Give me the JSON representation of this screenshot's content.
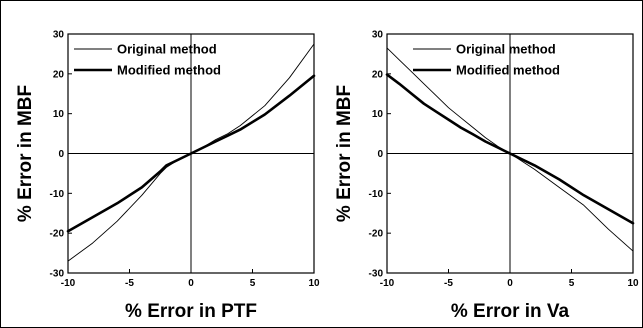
{
  "chart_data": [
    {
      "type": "line",
      "xlabel": "% Error in PTF",
      "ylabel": "% Error in MBF",
      "xlim": [
        -10,
        10
      ],
      "ylim": [
        -30,
        30
      ],
      "xticks": [
        "-10",
        "-5",
        "0",
        "5",
        "10"
      ],
      "yticks": [
        "30",
        "20",
        "10",
        "0",
        "-10",
        "-20",
        "-30"
      ],
      "legend_position": "top-left",
      "series": [
        {
          "name": "Original method",
          "x": [
            -10,
            -8,
            -6,
            -4,
            -2.5,
            -2,
            -1,
            0,
            1,
            2,
            3,
            4,
            6,
            8,
            10
          ],
          "y": [
            -27,
            -22.5,
            -17,
            -10.5,
            -5,
            -3.5,
            -1.5,
            0,
            1.6,
            3.5,
            5,
            7,
            12,
            19,
            27.5
          ]
        },
        {
          "name": "Modified method",
          "x": [
            -10,
            -8,
            -6,
            -4,
            -2.5,
            -2,
            -1,
            0,
            1,
            2,
            3,
            4,
            6,
            8,
            10
          ],
          "y": [
            -19.5,
            -16,
            -12.5,
            -8.5,
            -4.5,
            -3,
            -1.5,
            0,
            1.5,
            3,
            4.5,
            6,
            9.8,
            14.5,
            19.5
          ]
        }
      ]
    },
    {
      "type": "line",
      "xlabel": "% Error in Va",
      "ylabel": "% Error in MBF",
      "xlim": [
        -10,
        10
      ],
      "ylim": [
        -30,
        30
      ],
      "xticks": [
        "-10",
        "-5",
        "0",
        "5",
        "10"
      ],
      "yticks": [
        "30",
        "20",
        "10",
        "0",
        "-10",
        "-20",
        "-30"
      ],
      "legend_position": "top-right",
      "series": [
        {
          "name": "Original method",
          "x": [
            -10,
            -9,
            -8,
            -7,
            -6,
            -5,
            -4,
            -3,
            -2,
            -1,
            0,
            2,
            4,
            6,
            8,
            10
          ],
          "y": [
            26.5,
            23.5,
            20.5,
            17.5,
            14.5,
            11.5,
            9,
            6.5,
            4,
            1.8,
            0,
            -4,
            -8.5,
            -13,
            -19,
            -24.5
          ]
        },
        {
          "name": "Modified method",
          "x": [
            -10,
            -9,
            -8,
            -7,
            -6,
            -5,
            -4,
            -3,
            -2,
            -1,
            0,
            2,
            4,
            6,
            8,
            10
          ],
          "y": [
            19.8,
            17.5,
            15,
            12.5,
            10.5,
            8.5,
            6.5,
            4.8,
            3,
            1.5,
            0,
            -3,
            -6.5,
            -10.5,
            -14,
            -17.5
          ]
        }
      ]
    }
  ]
}
